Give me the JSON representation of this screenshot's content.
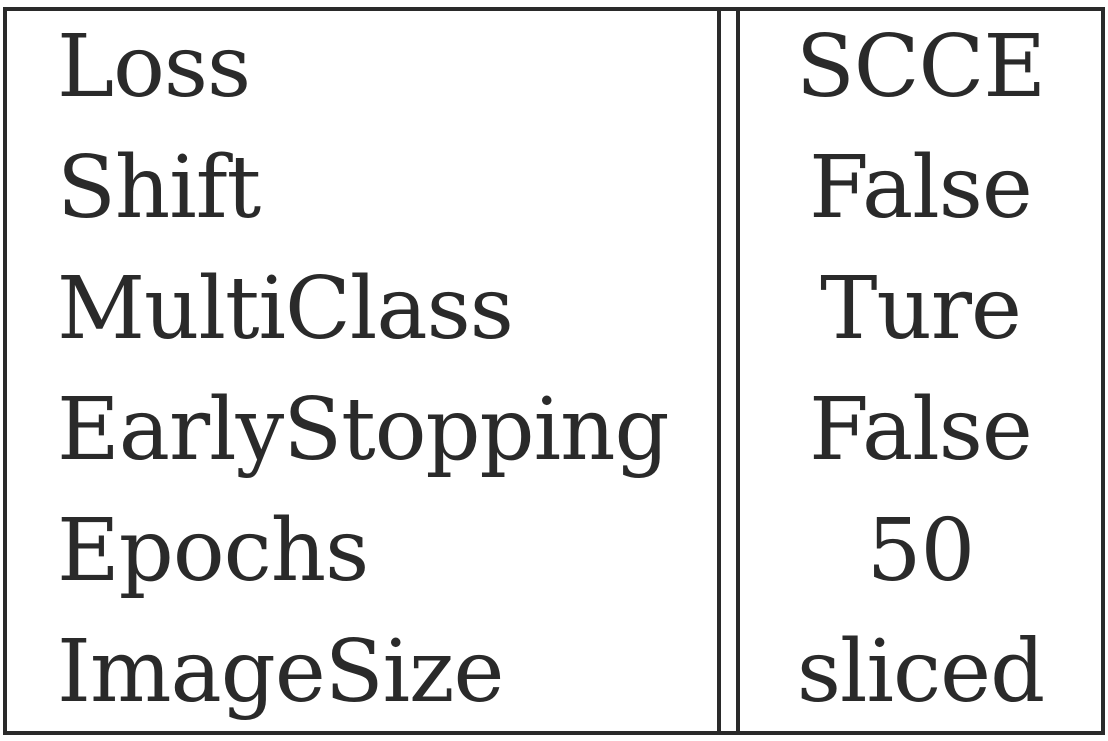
{
  "table": {
    "rows": [
      {
        "key": "Loss",
        "value": "SCCE"
      },
      {
        "key": "Shift",
        "value": "False"
      },
      {
        "key": "MultiClass",
        "value": "Ture"
      },
      {
        "key": "EarlyStopping",
        "value": "False"
      },
      {
        "key": "Epochs",
        "value": "50"
      },
      {
        "key": "ImageSize",
        "value": "sliced"
      }
    ]
  }
}
